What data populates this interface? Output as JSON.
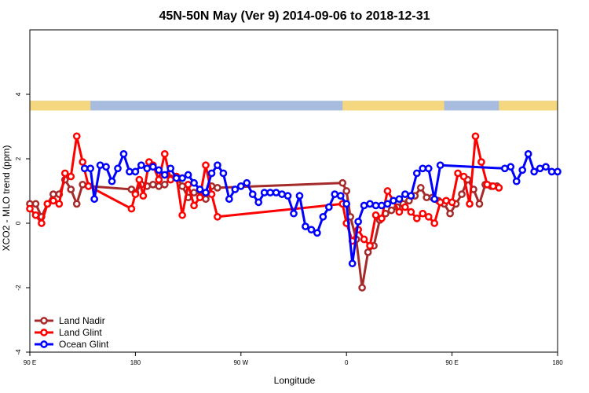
{
  "chart_data": {
    "type": "line",
    "title": "45N-50N May (Ver 9)   2014-09-06 to 2018-12-31",
    "xlabel": "Longitude",
    "ylabel": "XCO2 - MLO trend (ppm)",
    "xlim": [
      -90,
      180
    ],
    "ylim": [
      -4,
      6
    ],
    "xticks": [
      {
        "value": -90,
        "label": "90 E"
      },
      {
        "value": -36,
        "label": "180"
      },
      {
        "value": 18,
        "label": "90 W"
      },
      {
        "value": 72,
        "label": "0"
      },
      {
        "value": 126,
        "label": "90 E"
      },
      {
        "value": 180,
        "label": "180"
      }
    ],
    "yticks": [
      {
        "value": -4,
        "label": "-4"
      },
      {
        "value": -2,
        "label": "-2"
      },
      {
        "value": 0,
        "label": "0"
      },
      {
        "value": 2,
        "label": "2"
      },
      {
        "value": 4,
        "label": "4"
      }
    ],
    "land_ocean_band": {
      "y_range": [
        3.5,
        3.8
      ],
      "land_color": "#F5D77F",
      "ocean_color": "#A7BCDE",
      "land_x_spans": [
        [
          -90,
          -59
        ],
        [
          70,
          122
        ],
        [
          150,
          180
        ]
      ]
    },
    "legend_position": "bottom-left",
    "series": [
      {
        "name": "Land Nadir",
        "color": "#A52A2A",
        "x": [
          -90,
          -87,
          -84,
          -81,
          -78,
          -75,
          -72,
          -69,
          -66,
          -63,
          -60,
          -38,
          -36,
          -33,
          -30,
          -27,
          -24,
          -21,
          -18,
          -15,
          -12,
          -9,
          -6,
          -3,
          0,
          3,
          6,
          70,
          72,
          74,
          77,
          80,
          83,
          86,
          89,
          92,
          95,
          98,
          101,
          104,
          107,
          110,
          113,
          116,
          119,
          122,
          125,
          128,
          131,
          134,
          137,
          140,
          143,
          146,
          149
        ],
        "values": [
          0.6,
          0.6,
          0.2,
          0.6,
          0.9,
          0.9,
          1.35,
          1.05,
          0.6,
          1.2,
          1.15,
          1.05,
          0.95,
          1.2,
          1.15,
          1.2,
          1.15,
          1.2,
          1.4,
          1.45,
          1.15,
          0.8,
          0.95,
          1.0,
          0.75,
          1.15,
          1.1,
          1.25,
          1.0,
          0.2,
          -0.5,
          -2.0,
          -0.9,
          -0.7,
          0.1,
          0.3,
          0.4,
          0.5,
          0.6,
          0.7,
          0.85,
          1.1,
          0.8,
          0.8,
          0.7,
          0.6,
          0.3,
          0.6,
          0.9,
          1.35,
          1.05,
          0.6,
          1.2,
          1.15,
          1.15
        ]
      },
      {
        "name": "Land Glint",
        "color": "#FF0000",
        "x": [
          -90,
          -87,
          -84,
          -81,
          -78,
          -75,
          -72,
          -69,
          -66,
          -63,
          -60,
          -38,
          -36,
          -34,
          -32,
          -29,
          -27,
          -24,
          -21,
          -18,
          -15,
          -12,
          -9,
          -6,
          -3,
          0,
          3,
          6,
          70,
          72,
          75,
          78,
          81,
          84,
          87,
          90,
          93,
          96,
          99,
          102,
          105,
          108,
          111,
          114,
          117,
          120,
          123,
          126,
          129,
          132,
          135,
          138,
          141,
          144,
          147,
          150
        ],
        "values": [
          0.45,
          0.25,
          0.0,
          0.6,
          0.7,
          0.6,
          1.55,
          1.45,
          2.7,
          1.9,
          1.15,
          0.45,
          0.9,
          1.35,
          0.85,
          1.9,
          1.8,
          1.35,
          2.15,
          1.35,
          1.45,
          0.25,
          1.2,
          0.55,
          0.8,
          1.8,
          0.9,
          0.2,
          0.6,
          0.0,
          -0.55,
          -0.2,
          -0.5,
          -0.7,
          0.25,
          0.15,
          1.0,
          0.7,
          0.35,
          0.5,
          0.35,
          0.15,
          0.3,
          0.2,
          0.0,
          0.65,
          0.7,
          0.65,
          1.55,
          1.45,
          0.6,
          2.7,
          1.9,
          1.2,
          1.15,
          1.1
        ]
      },
      {
        "name": "Ocean Glint",
        "color": "#0000FF",
        "x": [
          -62,
          -59,
          -57,
          -54,
          -51,
          -48,
          -45,
          -42,
          -39,
          -36,
          -33,
          -30,
          -27,
          -24,
          -21,
          -18,
          -15,
          -12,
          -9,
          -6,
          -3,
          0,
          3,
          6,
          9,
          12,
          15,
          18,
          21,
          24,
          27,
          30,
          33,
          36,
          39,
          42,
          45,
          48,
          51,
          54,
          57,
          60,
          63,
          66,
          69,
          72,
          75,
          78,
          81,
          84,
          87,
          90,
          93,
          96,
          99,
          102,
          105,
          108,
          111,
          114,
          117,
          120,
          153,
          156,
          159,
          162,
          165,
          168,
          171,
          174,
          177,
          180
        ],
        "values": [
          1.7,
          1.7,
          0.75,
          1.8,
          1.75,
          1.3,
          1.7,
          2.15,
          1.6,
          1.6,
          1.8,
          1.7,
          1.75,
          1.65,
          1.5,
          1.7,
          1.4,
          1.4,
          1.5,
          1.25,
          1.05,
          0.95,
          1.55,
          1.8,
          1.55,
          0.75,
          1.05,
          1.15,
          1.25,
          0.9,
          0.65,
          0.95,
          0.95,
          0.95,
          0.9,
          0.85,
          0.3,
          0.85,
          -0.1,
          -0.2,
          -0.3,
          0.2,
          0.5,
          0.9,
          0.85,
          0.6,
          -1.25,
          0.05,
          0.55,
          0.6,
          0.55,
          0.55,
          0.6,
          0.7,
          0.75,
          0.9,
          0.85,
          1.55,
          1.7,
          1.7,
          0.75,
          1.8,
          1.7,
          1.75,
          1.3,
          1.65,
          2.15,
          1.6,
          1.7,
          1.75,
          1.6,
          1.6
        ]
      }
    ]
  }
}
